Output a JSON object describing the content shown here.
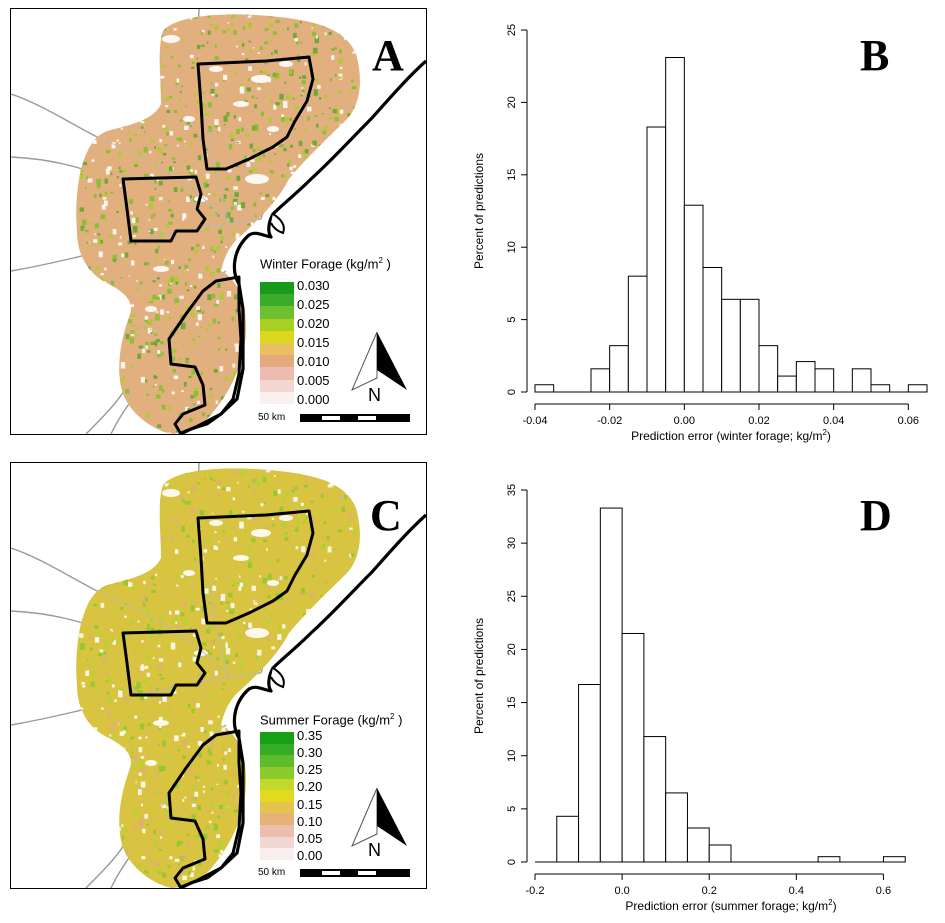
{
  "maps": [
    {
      "letter": "A",
      "legend_title": "Winter Forage (kg/m",
      "legend_sup": "2",
      "legend_close": " )",
      "legend_ticks": [
        "0.030",
        "0.025",
        "0.020",
        "0.015",
        "0.010",
        "0.005",
        "0.000"
      ],
      "legend_colors": [
        "#1a9a1a",
        "#3aab2a",
        "#6ec02e",
        "#a8d024",
        "#dcd81c",
        "#e8c060",
        "#e4aa7e",
        "#ecbcb0",
        "#f2d6d2",
        "#f9f0f0"
      ],
      "base_color": "#e2b07e",
      "speckle_colors": [
        "#7fbf2a",
        "#a9cf2a",
        "#5aa82a",
        "#ffffff"
      ],
      "north_label": "N",
      "scale_label": "50 km"
    },
    {
      "letter": "C",
      "legend_title": "Summer Forage (kg/m",
      "legend_sup": "2",
      "legend_close": " )",
      "legend_ticks": [
        "0.35",
        "0.30",
        "0.25",
        "0.20",
        "0.15",
        "0.10",
        "0.05",
        "0.00"
      ],
      "legend_colors": [
        "#16a016",
        "#34ad24",
        "#5cbc2c",
        "#8ccb2c",
        "#c2d82a",
        "#e2da1e",
        "#e6c24e",
        "#e7b27a",
        "#ecbeae",
        "#f2d8d4",
        "#f8eeee"
      ],
      "base_color": "#d8c440",
      "speckle_colors": [
        "#8ec82e",
        "#b5d232",
        "#e0b070",
        "#ffffff"
      ],
      "north_label": "N",
      "scale_label": "50 km"
    }
  ],
  "chart_data": [
    {
      "type": "bar",
      "letter": "B",
      "title": "",
      "xlabel": "Prediction error (winter forage; kg/m",
      "xlabel_sup": "2",
      "xlabel_close": ")",
      "ylabel": "Percent of predictions",
      "xlim": [
        -0.04,
        0.065
      ],
      "ylim": [
        0,
        25
      ],
      "bin_width": 0.005,
      "bins": [
        {
          "x0": -0.04,
          "value": 0.5
        },
        {
          "x0": -0.035,
          "value": 0.0
        },
        {
          "x0": -0.03,
          "value": 0.0
        },
        {
          "x0": -0.025,
          "value": 1.6
        },
        {
          "x0": -0.02,
          "value": 3.2
        },
        {
          "x0": -0.015,
          "value": 8.0
        },
        {
          "x0": -0.01,
          "value": 18.3
        },
        {
          "x0": -0.005,
          "value": 23.1
        },
        {
          "x0": 0.0,
          "value": 12.9
        },
        {
          "x0": 0.005,
          "value": 8.6
        },
        {
          "x0": 0.01,
          "value": 6.4
        },
        {
          "x0": 0.015,
          "value": 6.4
        },
        {
          "x0": 0.02,
          "value": 3.2
        },
        {
          "x0": 0.025,
          "value": 1.1
        },
        {
          "x0": 0.03,
          "value": 2.1
        },
        {
          "x0": 0.035,
          "value": 1.6
        },
        {
          "x0": 0.04,
          "value": 0.0
        },
        {
          "x0": 0.045,
          "value": 1.6
        },
        {
          "x0": 0.05,
          "value": 0.5
        },
        {
          "x0": 0.055,
          "value": 0.0
        },
        {
          "x0": 0.06,
          "value": 0.5
        }
      ],
      "xticks": [
        -0.04,
        -0.02,
        0.0,
        0.02,
        0.04,
        0.06
      ],
      "xtick_labels": [
        "-0.04",
        "-0.02",
        "0.00",
        "0.02",
        "0.04",
        "0.06"
      ],
      "yticks": [
        0,
        5,
        10,
        15,
        20,
        25
      ],
      "ytick_labels": [
        "0",
        "5",
        "10",
        "15",
        "20",
        "25"
      ]
    },
    {
      "type": "bar",
      "letter": "D",
      "title": "",
      "xlabel": "Prediction error (summer forage; kg/m",
      "xlabel_sup": "2",
      "xlabel_close": ")",
      "ylabel": "Percent of predictions",
      "xlim": [
        -0.2,
        0.7
      ],
      "ylim": [
        0,
        35
      ],
      "bin_width": 0.05,
      "bins": [
        {
          "x0": -0.2,
          "value": 0.0
        },
        {
          "x0": -0.15,
          "value": 4.3
        },
        {
          "x0": -0.1,
          "value": 16.7
        },
        {
          "x0": -0.05,
          "value": 33.3
        },
        {
          "x0": 0.0,
          "value": 21.5
        },
        {
          "x0": 0.05,
          "value": 11.8
        },
        {
          "x0": 0.1,
          "value": 6.5
        },
        {
          "x0": 0.15,
          "value": 3.2
        },
        {
          "x0": 0.2,
          "value": 1.6
        },
        {
          "x0": 0.25,
          "value": 0.0
        },
        {
          "x0": 0.3,
          "value": 0.0
        },
        {
          "x0": 0.35,
          "value": 0.0
        },
        {
          "x0": 0.4,
          "value": 0.0
        },
        {
          "x0": 0.45,
          "value": 0.5
        },
        {
          "x0": 0.5,
          "value": 0.0
        },
        {
          "x0": 0.55,
          "value": 0.0
        },
        {
          "x0": 0.6,
          "value": 0.5
        }
      ],
      "xticks": [
        -0.2,
        0.0,
        0.2,
        0.4,
        0.6
      ],
      "xtick_labels": [
        "-0.2",
        "0.0",
        "0.2",
        "0.4",
        "0.6"
      ],
      "yticks": [
        0,
        5,
        10,
        15,
        20,
        25,
        30,
        35
      ],
      "ytick_labels": [
        "0",
        "5",
        "10",
        "15",
        "20",
        "25",
        "30",
        "35"
      ]
    }
  ]
}
